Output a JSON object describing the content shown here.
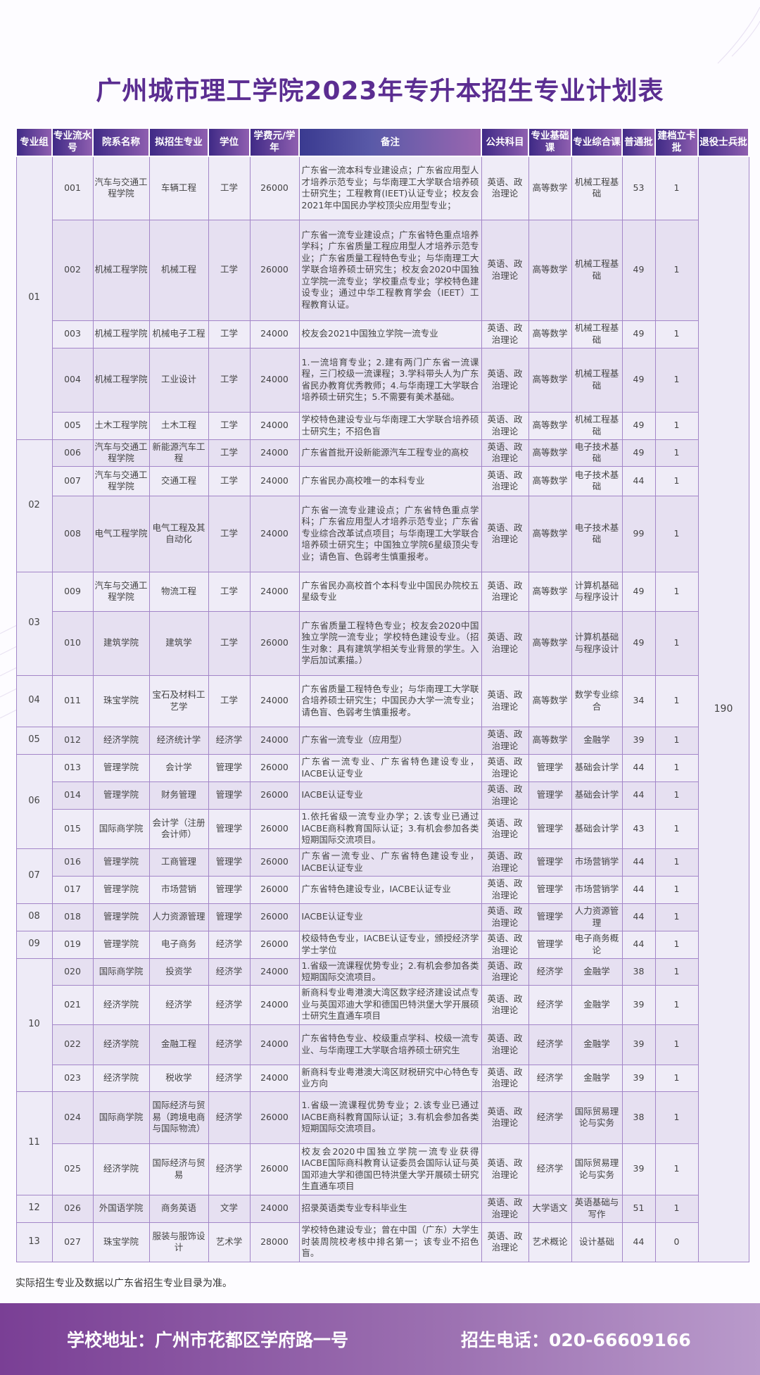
{
  "title": "广州城市理工学院2023年专升本招生专业计划表",
  "headers": [
    "专业组",
    "专业流水号",
    "院系名称",
    "拟招生专业",
    "学位",
    "学费元/学年",
    "备注",
    "公共科目",
    "专业基础课",
    "专业综合课",
    "普通批",
    "建档立卡批",
    "退役士兵批"
  ],
  "veteran_total": "190",
  "groups": [
    {
      "label": "01",
      "span": 5
    },
    {
      "label": "02",
      "span": 3
    },
    {
      "label": "03",
      "span": 2
    },
    {
      "label": "04",
      "span": 1
    },
    {
      "label": "05",
      "span": 1
    },
    {
      "label": "06",
      "span": 3
    },
    {
      "label": "07",
      "span": 2
    },
    {
      "label": "08",
      "span": 1
    },
    {
      "label": "09",
      "span": 1
    },
    {
      "label": "10",
      "span": 4
    },
    {
      "label": "11",
      "span": 2
    },
    {
      "label": "12",
      "span": 1
    },
    {
      "label": "13",
      "span": 1
    }
  ],
  "rows": [
    {
      "no": "001",
      "college": "汽车与交通工程学院",
      "major": "车辆工程",
      "degree": "工学",
      "fee": "26000",
      "remark": "广东省一流本科专业建设点；广东省应用型人才培养示范专业；与华南理工大学联合培养硕士研究生；工程教育(IEET)认证专业；校友会2021年中国民办学校顶尖应用型专业；",
      "public": "英语、政治理论",
      "basic": "高等数学",
      "comp": "机械工程基础",
      "regular": "53",
      "poverty": "1"
    },
    {
      "no": "002",
      "college": "机械工程学院",
      "major": "机械工程",
      "degree": "工学",
      "fee": "26000",
      "remark": "广东省一流专业建设点；广东省特色重点培养学科；广东省质量工程应用型人才培养示范专业；广东省质量工程特色专业；与华南理工大学联合培养硕士研究生；校友会2020中国独立学院一流专业；学校重点专业；学校特色建设专业；通过中华工程教育学会（IEET）工程教育认证。",
      "public": "英语、政治理论",
      "basic": "高等数学",
      "comp": "机械工程基础",
      "regular": "49",
      "poverty": "1"
    },
    {
      "no": "003",
      "college": "机械工程学院",
      "major": "机械电子工程",
      "degree": "工学",
      "fee": "24000",
      "remark": "校友会2021中国独立学院一流专业",
      "public": "英语、政治理论",
      "basic": "高等数学",
      "comp": "机械工程基础",
      "regular": "49",
      "poverty": "1"
    },
    {
      "no": "004",
      "college": "机械工程学院",
      "major": "工业设计",
      "degree": "工学",
      "fee": "24000",
      "remark": "1.一流培育专业；2.建有两门广东省一流课程，三门校级一流课程；3.学科带头人为广东省民办教育优秀教师；4.与华南理工大学联合培养硕士研究生；5.不需要有美术基础。",
      "public": "英语、政治理论",
      "basic": "高等数学",
      "comp": "机械工程基础",
      "regular": "49",
      "poverty": "1"
    },
    {
      "no": "005",
      "college": "土木工程学院",
      "major": "土木工程",
      "degree": "工学",
      "fee": "24000",
      "remark": "学校特色建设专业与华南理工大学联合培养硕士研究生；不招色盲",
      "public": "英语、政治理论",
      "basic": "高等数学",
      "comp": "机械工程基础",
      "regular": "49",
      "poverty": "1"
    },
    {
      "no": "006",
      "college": "汽车与交通工程学院",
      "major": "新能源汽车工程",
      "degree": "工学",
      "fee": "24000",
      "remark": "广东省首批开设新能源汽车工程专业的高校",
      "public": "英语、政治理论",
      "basic": "高等数学",
      "comp": "电子技术基础",
      "regular": "49",
      "poverty": "1"
    },
    {
      "no": "007",
      "college": "汽车与交通工程学院",
      "major": "交通工程",
      "degree": "工学",
      "fee": "24000",
      "remark": "广东省民办高校唯一的本科专业",
      "public": "英语、政治理论",
      "basic": "高等数学",
      "comp": "电子技术基础",
      "regular": "44",
      "poverty": "1"
    },
    {
      "no": "008",
      "college": "电气工程学院",
      "major": "电气工程及其自动化",
      "degree": "工学",
      "fee": "24000",
      "remark": "广东省一流专业建设点；广东省特色重点学科；广东省应用型人才培养示范专业；广东省专业综合改革试点项目；与华南理工大学联合培养硕士研究生；中国独立学院6星级顶尖专业；请色盲、色弱考生慎重报考。",
      "public": "英语、政治理论",
      "basic": "高等数学",
      "comp": "电子技术基础",
      "regular": "99",
      "poverty": "1"
    },
    {
      "no": "009",
      "college": "汽车与交通工程学院",
      "major": "物流工程",
      "degree": "工学",
      "fee": "24000",
      "remark": "广东省民办高校首个本科专业中国民办院校五星级专业",
      "public": "英语、政治理论",
      "basic": "高等数学",
      "comp": "计算机基础与程序设计",
      "regular": "49",
      "poverty": "1"
    },
    {
      "no": "010",
      "college": "建筑学院",
      "major": "建筑学",
      "degree": "工学",
      "fee": "26000",
      "remark": "广东省质量工程特色专业；校友会2020中国独立学院一流专业；学校特色建设专业。（招生对象：具有建筑学相关专业背景的学生。入学后加试素描。）",
      "public": "英语、政治理论",
      "basic": "高等数学",
      "comp": "计算机基础与程序设计",
      "regular": "49",
      "poverty": "1"
    },
    {
      "no": "011",
      "college": "珠宝学院",
      "major": "宝石及材料工艺学",
      "degree": "工学",
      "fee": "24000",
      "remark": "广东省质量工程特色专业；与华南理工大学联合培养硕士研究生；中国民办大学一流专业；请色盲、色弱考生慎重报考。",
      "public": "英语、政治理论",
      "basic": "高等数学",
      "comp": "数学专业综合",
      "regular": "34",
      "poverty": "1"
    },
    {
      "no": "012",
      "college": "经济学院",
      "major": "经济统计学",
      "degree": "经济学",
      "fee": "24000",
      "remark": "广东省一流专业（应用型）",
      "public": "英语、政治理论",
      "basic": "高等数学",
      "comp": "金融学",
      "regular": "39",
      "poverty": "1"
    },
    {
      "no": "013",
      "college": "管理学院",
      "major": "会计学",
      "degree": "管理学",
      "fee": "26000",
      "remark": "广东省一流专业、广东省特色建设专业，IACBE认证专业",
      "public": "英语、政治理论",
      "basic": "管理学",
      "comp": "基础会计学",
      "regular": "44",
      "poverty": "1"
    },
    {
      "no": "014",
      "college": "管理学院",
      "major": "财务管理",
      "degree": "管理学",
      "fee": "26000",
      "remark": "IACBE认证专业",
      "public": "英语、政治理论",
      "basic": "管理学",
      "comp": "基础会计学",
      "regular": "44",
      "poverty": "1"
    },
    {
      "no": "015",
      "college": "国际商学院",
      "major": "会计学（注册会计师）",
      "degree": "管理学",
      "fee": "26000",
      "remark": "1.依托省级一流专业办学；2.该专业已通过IACBE商科教育国际认证；3.有机会参加各类短期国际交流项目。",
      "public": "英语、政治理论",
      "basic": "管理学",
      "comp": "基础会计学",
      "regular": "43",
      "poverty": "1"
    },
    {
      "no": "016",
      "college": "管理学院",
      "major": "工商管理",
      "degree": "管理学",
      "fee": "26000",
      "remark": "广东省一流专业、广东省特色建设专业，IACBE认证专业",
      "public": "英语、政治理论",
      "basic": "管理学",
      "comp": "市场营销学",
      "regular": "44",
      "poverty": "1"
    },
    {
      "no": "017",
      "college": "管理学院",
      "major": "市场营销",
      "degree": "管理学",
      "fee": "26000",
      "remark": "广东省特色建设专业，IACBE认证专业",
      "public": "英语、政治理论",
      "basic": "管理学",
      "comp": "市场营销学",
      "regular": "44",
      "poverty": "1"
    },
    {
      "no": "018",
      "college": "管理学院",
      "major": "人力资源管理",
      "degree": "管理学",
      "fee": "26000",
      "remark": "IACBE认证专业",
      "public": "英语、政治理论",
      "basic": "管理学",
      "comp": "人力资源管理",
      "regular": "44",
      "poverty": "1"
    },
    {
      "no": "019",
      "college": "管理学院",
      "major": "电子商务",
      "degree": "经济学",
      "fee": "26000",
      "remark": "校级特色专业，IACBE认证专业，颁授经济学学士学位",
      "public": "英语、政治理论",
      "basic": "管理学",
      "comp": "电子商务概论",
      "regular": "44",
      "poverty": "1"
    },
    {
      "no": "020",
      "college": "国际商学院",
      "major": "投资学",
      "degree": "经济学",
      "fee": "24000",
      "remark": "1.省级一流课程优势专业；2.有机会参加各类短期国际交流项目。",
      "public": "英语、政治理论",
      "basic": "经济学",
      "comp": "金融学",
      "regular": "38",
      "poverty": "1"
    },
    {
      "no": "021",
      "college": "经济学院",
      "major": "经济学",
      "degree": "经济学",
      "fee": "24000",
      "remark": "新商科专业粤港澳大湾区数字经济建设试点专业与英国邓迪大学和德国巴特洪堡大学开展硕士研究生直通车项目",
      "public": "英语、政治理论",
      "basic": "经济学",
      "comp": "金融学",
      "regular": "39",
      "poverty": "1"
    },
    {
      "no": "022",
      "college": "经济学院",
      "major": "金融工程",
      "degree": "经济学",
      "fee": "24000",
      "remark": "广东省特色专业、校级重点学科、校级一流专业、与华南理工大学联合培养硕士研究生",
      "public": "英语、政治理论",
      "basic": "经济学",
      "comp": "金融学",
      "regular": "39",
      "poverty": "1"
    },
    {
      "no": "023",
      "college": "经济学院",
      "major": "税收学",
      "degree": "经济学",
      "fee": "24000",
      "remark": "新商科专业粤港澳大湾区财税研究中心特色专业方向",
      "public": "英语、政治理论",
      "basic": "经济学",
      "comp": "金融学",
      "regular": "39",
      "poverty": "1"
    },
    {
      "no": "024",
      "college": "国际商学院",
      "major": "国际经济与贸易（跨境电商与国际物流）",
      "degree": "经济学",
      "fee": "26000",
      "remark": "1.省级一流课程优势专业；2.该专业已通过IACBE商科教育国际认证；3.有机会参加各类短期国际交流项目。",
      "public": "英语、政治理论",
      "basic": "经济学",
      "comp": "国际贸易理论与实务",
      "regular": "38",
      "poverty": "1"
    },
    {
      "no": "025",
      "college": "经济学院",
      "major": "国际经济与贸易",
      "degree": "经济学",
      "fee": "26000",
      "remark": "校友会2020中国独立学院一流专业获得IACBE国际商科教育认证委员会国际认证与英国邓迪大学和德国巴特洪堡大学开展硕士研究生直通车项目",
      "public": "英语、政治理论",
      "basic": "经济学",
      "comp": "国际贸易理论与实务",
      "regular": "39",
      "poverty": "1"
    },
    {
      "no": "026",
      "college": "外国语学院",
      "major": "商务英语",
      "degree": "文学",
      "fee": "24000",
      "remark": "招录英语类专业专科毕业生",
      "public": "英语、政治理论",
      "basic": "大学语文",
      "comp": "英语基础与写作",
      "regular": "51",
      "poverty": "1"
    },
    {
      "no": "027",
      "college": "珠宝学院",
      "major": "服装与服饰设计",
      "degree": "艺术学",
      "fee": "28000",
      "remark": "学校特色建设专业；曾在中国（广东）大学生时装周院校考核中排名第一；该专业不招色盲。",
      "public": "英语、政治理论",
      "basic": "艺术概论",
      "comp": "设计基础",
      "regular": "44",
      "poverty": "0"
    }
  ],
  "footnote": "实际招生专业及数据以广东省招生专业目录为准。",
  "banner": {
    "address": "学校地址：广州市花都区学府路一号",
    "phone": "招生电话：020-66609166"
  },
  "colors": {
    "title": "#5b2d91",
    "header_start": "#3f2a86",
    "header_end": "#8f5fb0",
    "border": "#a386c8",
    "banner": "#7a3f95"
  }
}
